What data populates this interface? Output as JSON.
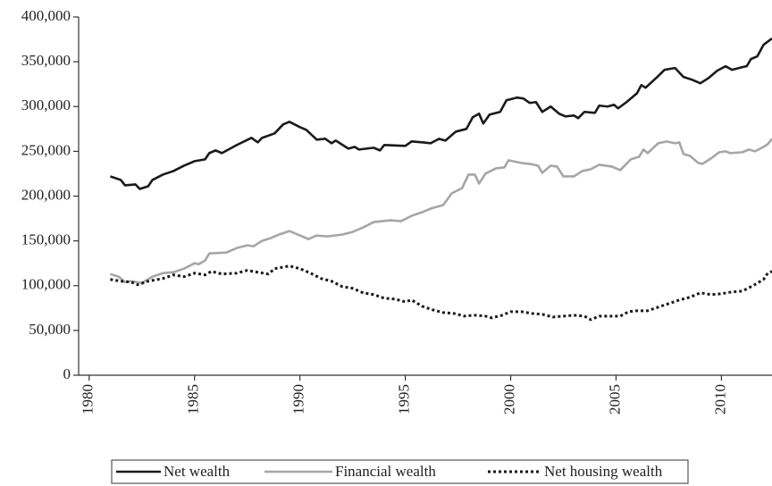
{
  "chart_data": {
    "type": "line",
    "xlim": [
      1979.5,
      2012.4
    ],
    "xticks": [
      1980,
      1985,
      1990,
      1995,
      2000,
      2005,
      2010
    ],
    "ylim": [
      0,
      400000
    ],
    "yticks": [
      0,
      {
        "value": 50000,
        "label": "50,000"
      },
      {
        "value": 100000,
        "label": "100,000"
      },
      {
        "value": 150000,
        "label": "150,000"
      },
      {
        "value": 200000,
        "label": "200,000"
      },
      {
        "value": 250000,
        "label": "250,000"
      },
      {
        "value": 300000,
        "label": "300,000"
      },
      {
        "value": 350000,
        "label": "350,000"
      },
      {
        "value": 400000,
        "label": "400,000"
      }
    ],
    "grid": false,
    "legend": "bottom",
    "series": [
      {
        "name": "Net wealth",
        "color": "#1a1a1a",
        "dash": "solid",
        "x": [
          1981.0,
          1981.5,
          1981.7,
          1982.2,
          1982.4,
          1982.8,
          1983.0,
          1983.5,
          1984.0,
          1984.5,
          1985.0,
          1985.5,
          1985.7,
          1986.0,
          1986.3,
          1987.0,
          1987.7,
          1988.0,
          1988.2,
          1988.8,
          1989.2,
          1989.5,
          1990.0,
          1990.3,
          1990.8,
          1991.2,
          1991.5,
          1991.7,
          1992.3,
          1992.6,
          1992.8,
          1993.5,
          1993.8,
          1994.0,
          1995.0,
          1995.3,
          1995.8,
          1996.2,
          1996.6,
          1996.9,
          1997.4,
          1997.9,
          1998.2,
          1998.5,
          1998.7,
          1999.0,
          1999.5,
          1999.8,
          2000.3,
          2000.6,
          2000.9,
          2001.2,
          2001.5,
          2001.9,
          2002.3,
          2002.6,
          2003.0,
          2003.2,
          2003.5,
          2004.0,
          2004.2,
          2004.6,
          2004.9,
          2005.1,
          2005.5,
          2006.0,
          2006.2,
          2006.4,
          2007.0,
          2007.3,
          2007.8,
          2008.2,
          2008.6,
          2009.0,
          2009.4,
          2009.8,
          2010.2,
          2010.5,
          2011.0,
          2011.2,
          2011.4,
          2011.7,
          2012.0,
          2012.4
        ],
        "values": [
          222000,
          218000,
          212000,
          213000,
          208000,
          211000,
          218000,
          224000,
          228000,
          234000,
          239000,
          241000,
          248000,
          251000,
          248000,
          257000,
          265000,
          260000,
          265000,
          270000,
          280000,
          283000,
          277000,
          274000,
          263000,
          264000,
          259000,
          262000,
          253000,
          255000,
          252000,
          254000,
          251000,
          257000,
          256000,
          261000,
          260000,
          259000,
          264000,
          262000,
          272000,
          275000,
          288000,
          292000,
          281000,
          291000,
          294000,
          307000,
          310000,
          309000,
          304000,
          305000,
          294000,
          300000,
          292000,
          289000,
          290000,
          287000,
          294000,
          293000,
          301000,
          300000,
          302000,
          298000,
          305000,
          315000,
          324000,
          321000,
          334000,
          341000,
          343000,
          333000,
          330000,
          326000,
          332000,
          340000,
          345000,
          341000,
          344000,
          345000,
          353000,
          356000,
          369000,
          376000
        ]
      },
      {
        "name": "Financial wealth",
        "color": "#a6a6a6",
        "dash": "solid",
        "x": [
          1981.0,
          1981.4,
          1981.7,
          1982.0,
          1982.5,
          1983.0,
          1983.5,
          1984.0,
          1984.5,
          1985.0,
          1985.2,
          1985.5,
          1985.7,
          1986.5,
          1987.0,
          1987.5,
          1987.8,
          1988.2,
          1988.6,
          1989.0,
          1989.5,
          1990.0,
          1990.4,
          1990.8,
          1991.3,
          1992.0,
          1992.5,
          1993.0,
          1993.5,
          1994.3,
          1994.8,
          1995.3,
          1995.8,
          1996.2,
          1996.8,
          1997.2,
          1997.7,
          1998.0,
          1998.3,
          1998.5,
          1998.8,
          1999.3,
          1999.7,
          1999.9,
          2000.5,
          2000.9,
          2001.3,
          2001.5,
          2001.9,
          2002.2,
          2002.5,
          2003.0,
          2003.4,
          2003.8,
          2004.2,
          2004.8,
          2005.2,
          2005.7,
          2006.1,
          2006.3,
          2006.5,
          2007.0,
          2007.4,
          2007.8,
          2008.0,
          2008.2,
          2008.5,
          2008.9,
          2009.1,
          2009.5,
          2009.9,
          2010.2,
          2010.4,
          2011.0,
          2011.3,
          2011.6,
          2012.0,
          2012.2,
          2012.4
        ],
        "values": [
          113000,
          110000,
          104000,
          105000,
          103000,
          110000,
          114000,
          115000,
          119000,
          125000,
          124000,
          128000,
          136000,
          137000,
          142000,
          145000,
          144000,
          150000,
          153000,
          157000,
          161000,
          156000,
          152000,
          156000,
          155000,
          157000,
          160000,
          165000,
          171000,
          173000,
          172000,
          178000,
          182000,
          186000,
          190000,
          203000,
          209000,
          224000,
          224000,
          214000,
          225000,
          231000,
          232000,
          240000,
          237000,
          236000,
          234000,
          226000,
          234000,
          233000,
          222000,
          222000,
          228000,
          230000,
          235000,
          233000,
          229000,
          241000,
          244000,
          252000,
          248000,
          259000,
          261000,
          259000,
          260000,
          247000,
          245000,
          237000,
          236000,
          242000,
          249000,
          250000,
          248000,
          249000,
          252000,
          250000,
          255000,
          258000,
          264000
        ]
      },
      {
        "name": "Net housing wealth",
        "color": "#1a1a1a",
        "dash": "dotted",
        "x": [
          1981.0,
          1981.5,
          1982.0,
          1982.3,
          1982.8,
          1983.5,
          1984.0,
          1984.5,
          1985.0,
          1985.5,
          1985.8,
          1986.3,
          1987.0,
          1987.5,
          1988.0,
          1988.5,
          1988.8,
          1989.5,
          1990.0,
          1990.5,
          1991.0,
          1991.5,
          1992.0,
          1992.5,
          1993.0,
          1993.5,
          1994.0,
          1994.5,
          1995.0,
          1995.3,
          1995.8,
          1996.3,
          1996.8,
          1997.3,
          1997.8,
          1998.3,
          1998.8,
          1999.1,
          1999.6,
          2000.0,
          2000.5,
          2001.0,
          2001.5,
          2002.0,
          2002.5,
          2003.0,
          2003.5,
          2003.8,
          2004.2,
          2004.8,
          2005.2,
          2005.6,
          2006.0,
          2006.5,
          2007.0,
          2007.5,
          2008.0,
          2008.5,
          2009.0,
          2009.5,
          2010.0,
          2010.5,
          2011.0,
          2011.5,
          2012.0,
          2012.2,
          2012.4
        ],
        "values": [
          107000,
          105000,
          104000,
          101000,
          105000,
          108000,
          112000,
          110000,
          114000,
          112000,
          116000,
          113000,
          114000,
          117000,
          115000,
          113000,
          119000,
          122000,
          119000,
          114000,
          108000,
          105000,
          99000,
          97000,
          92000,
          90000,
          86000,
          85000,
          82000,
          84000,
          77000,
          73000,
          70000,
          69000,
          66000,
          67000,
          66000,
          64000,
          67000,
          71000,
          71000,
          69000,
          68000,
          65000,
          66000,
          67000,
          66000,
          62000,
          66000,
          66000,
          66000,
          71000,
          72000,
          72000,
          76000,
          80000,
          84000,
          87000,
          92000,
          90000,
          91000,
          93000,
          94000,
          100000,
          107000,
          114000,
          116000
        ]
      }
    ]
  }
}
